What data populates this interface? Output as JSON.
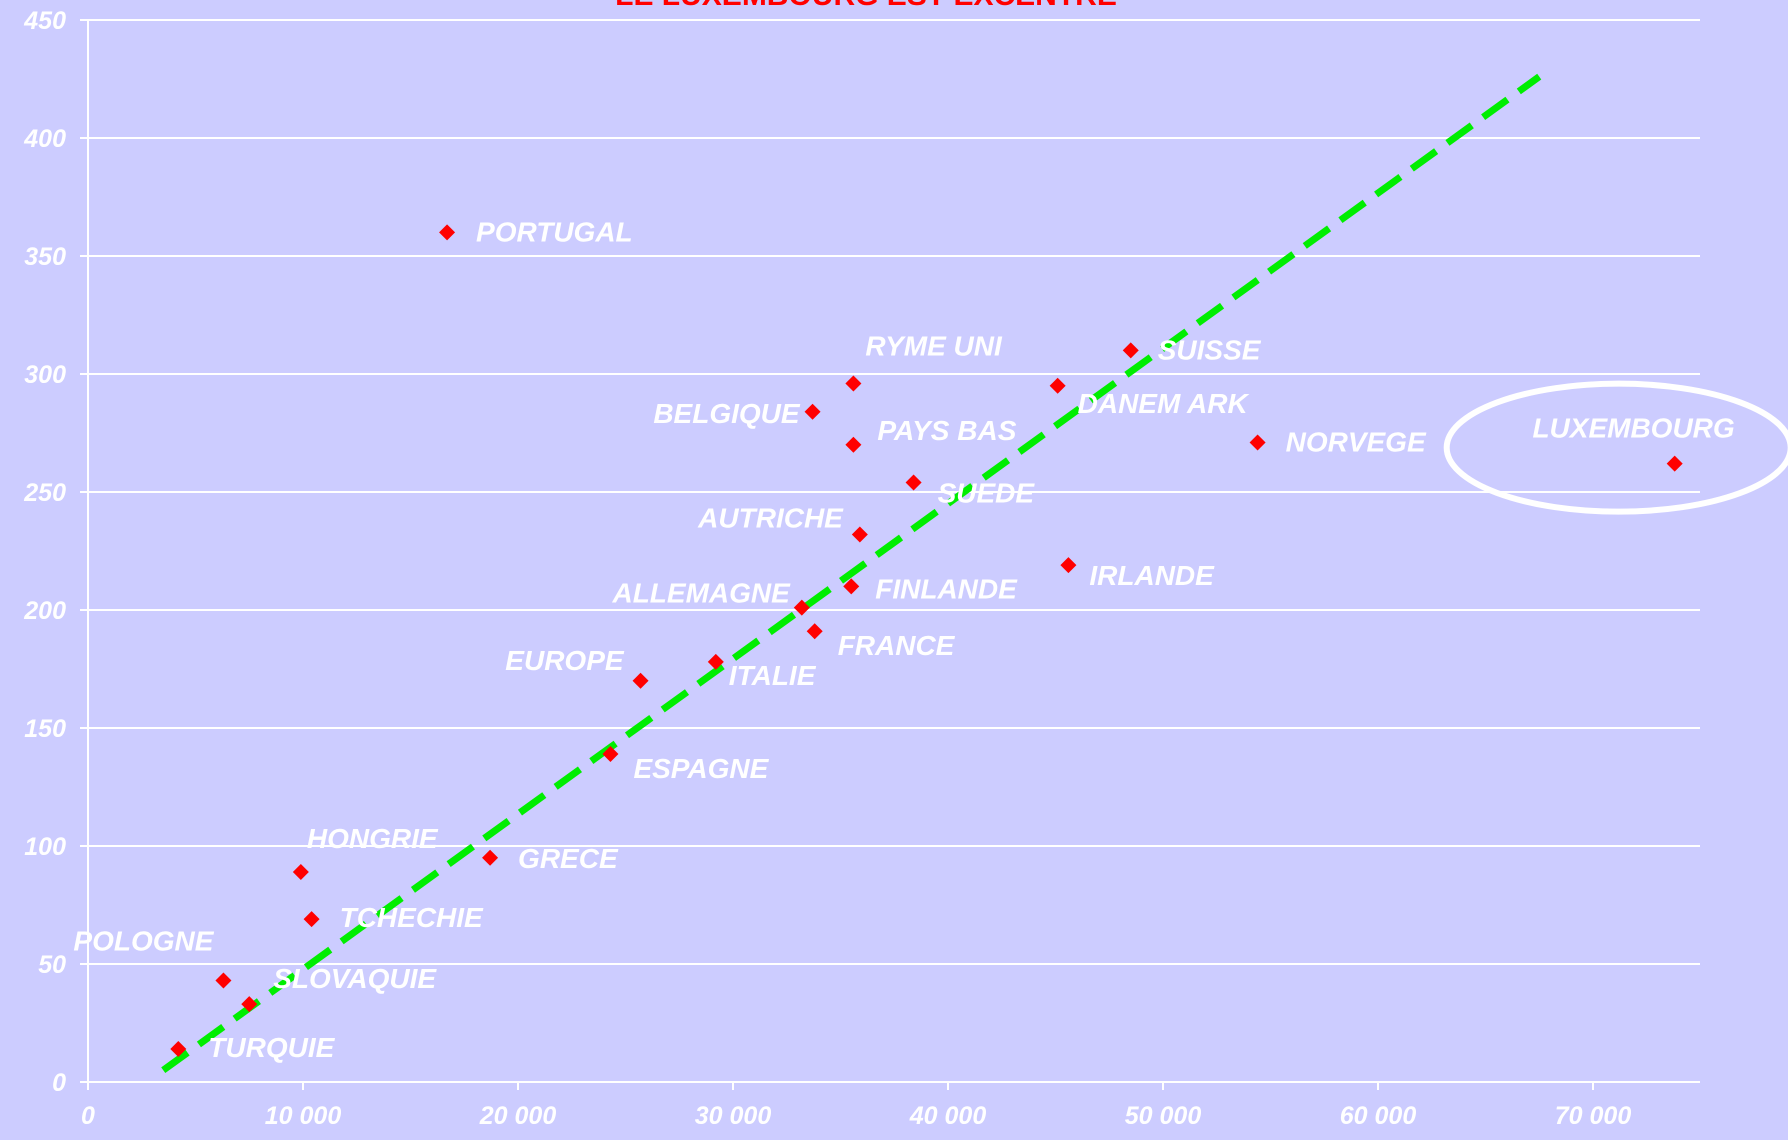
{
  "chart_data": {
    "type": "scatter",
    "title": "LE LUXEMBOURG EST EXCENTRE",
    "xlabel": "",
    "ylabel": "",
    "xlim": [
      0,
      75000
    ],
    "ylim": [
      0,
      450
    ],
    "x_ticks": [
      0,
      10000,
      20000,
      30000,
      40000,
      50000,
      60000,
      70000
    ],
    "x_tick_labels": [
      "0",
      "10 000",
      "20 000",
      "30 000",
      "40 000",
      "50 000",
      "60 000",
      "70 000"
    ],
    "y_ticks": [
      0,
      50,
      100,
      150,
      200,
      250,
      300,
      350,
      400,
      450
    ],
    "y_tick_labels": [
      "0",
      "50",
      "100",
      "150",
      "200",
      "250",
      "300",
      "350",
      "400",
      "450"
    ],
    "grid": "horizontal",
    "marker_color": "#ff0000",
    "trendline": {
      "style": "dashed",
      "color": "#00ee00",
      "x": [
        3500,
        67500
      ],
      "y": [
        5,
        426
      ]
    },
    "highlight": {
      "point": "LUXEMBOURG",
      "style": "white ellipse"
    },
    "points": [
      {
        "label": "TURQUIE",
        "x": 4200,
        "y": 14
      },
      {
        "label": "POLOGNE",
        "x": 6300,
        "y": 43
      },
      {
        "label": "SLOVAQUIE",
        "x": 7500,
        "y": 33
      },
      {
        "label": "HONGRIE",
        "x": 9900,
        "y": 89
      },
      {
        "label": "TCHECHIE",
        "x": 10400,
        "y": 69
      },
      {
        "label": "PORTUGAL",
        "x": 16700,
        "y": 360
      },
      {
        "label": "GRECE",
        "x": 18700,
        "y": 95
      },
      {
        "label": "ESPAGNE",
        "x": 24300,
        "y": 139
      },
      {
        "label": "EUROPE",
        "x": 25700,
        "y": 170
      },
      {
        "label": "ITALIE",
        "x": 29200,
        "y": 178
      },
      {
        "label": "ALLEMAGNE",
        "x": 33200,
        "y": 201
      },
      {
        "label": "BELGIQUE",
        "x": 33700,
        "y": 284
      },
      {
        "label": "FRANCE",
        "x": 33800,
        "y": 191
      },
      {
        "label": "FINLANDE",
        "x": 35500,
        "y": 210
      },
      {
        "label": "RYME UNI",
        "x": 35600,
        "y": 296
      },
      {
        "label": "PAYS BAS",
        "x": 35600,
        "y": 270
      },
      {
        "label": "AUTRICHE",
        "x": 35900,
        "y": 232
      },
      {
        "label": "SUEDE",
        "x": 38400,
        "y": 254
      },
      {
        "label": "DANEM ARK",
        "x": 45100,
        "y": 295
      },
      {
        "label": "IRLANDE",
        "x": 45600,
        "y": 219
      },
      {
        "label": "SUISSE",
        "x": 48500,
        "y": 310
      },
      {
        "label": "NORVEGE",
        "x": 54400,
        "y": 271
      },
      {
        "label": "LUXEMBOURG",
        "x": 73800,
        "y": 262
      }
    ]
  }
}
